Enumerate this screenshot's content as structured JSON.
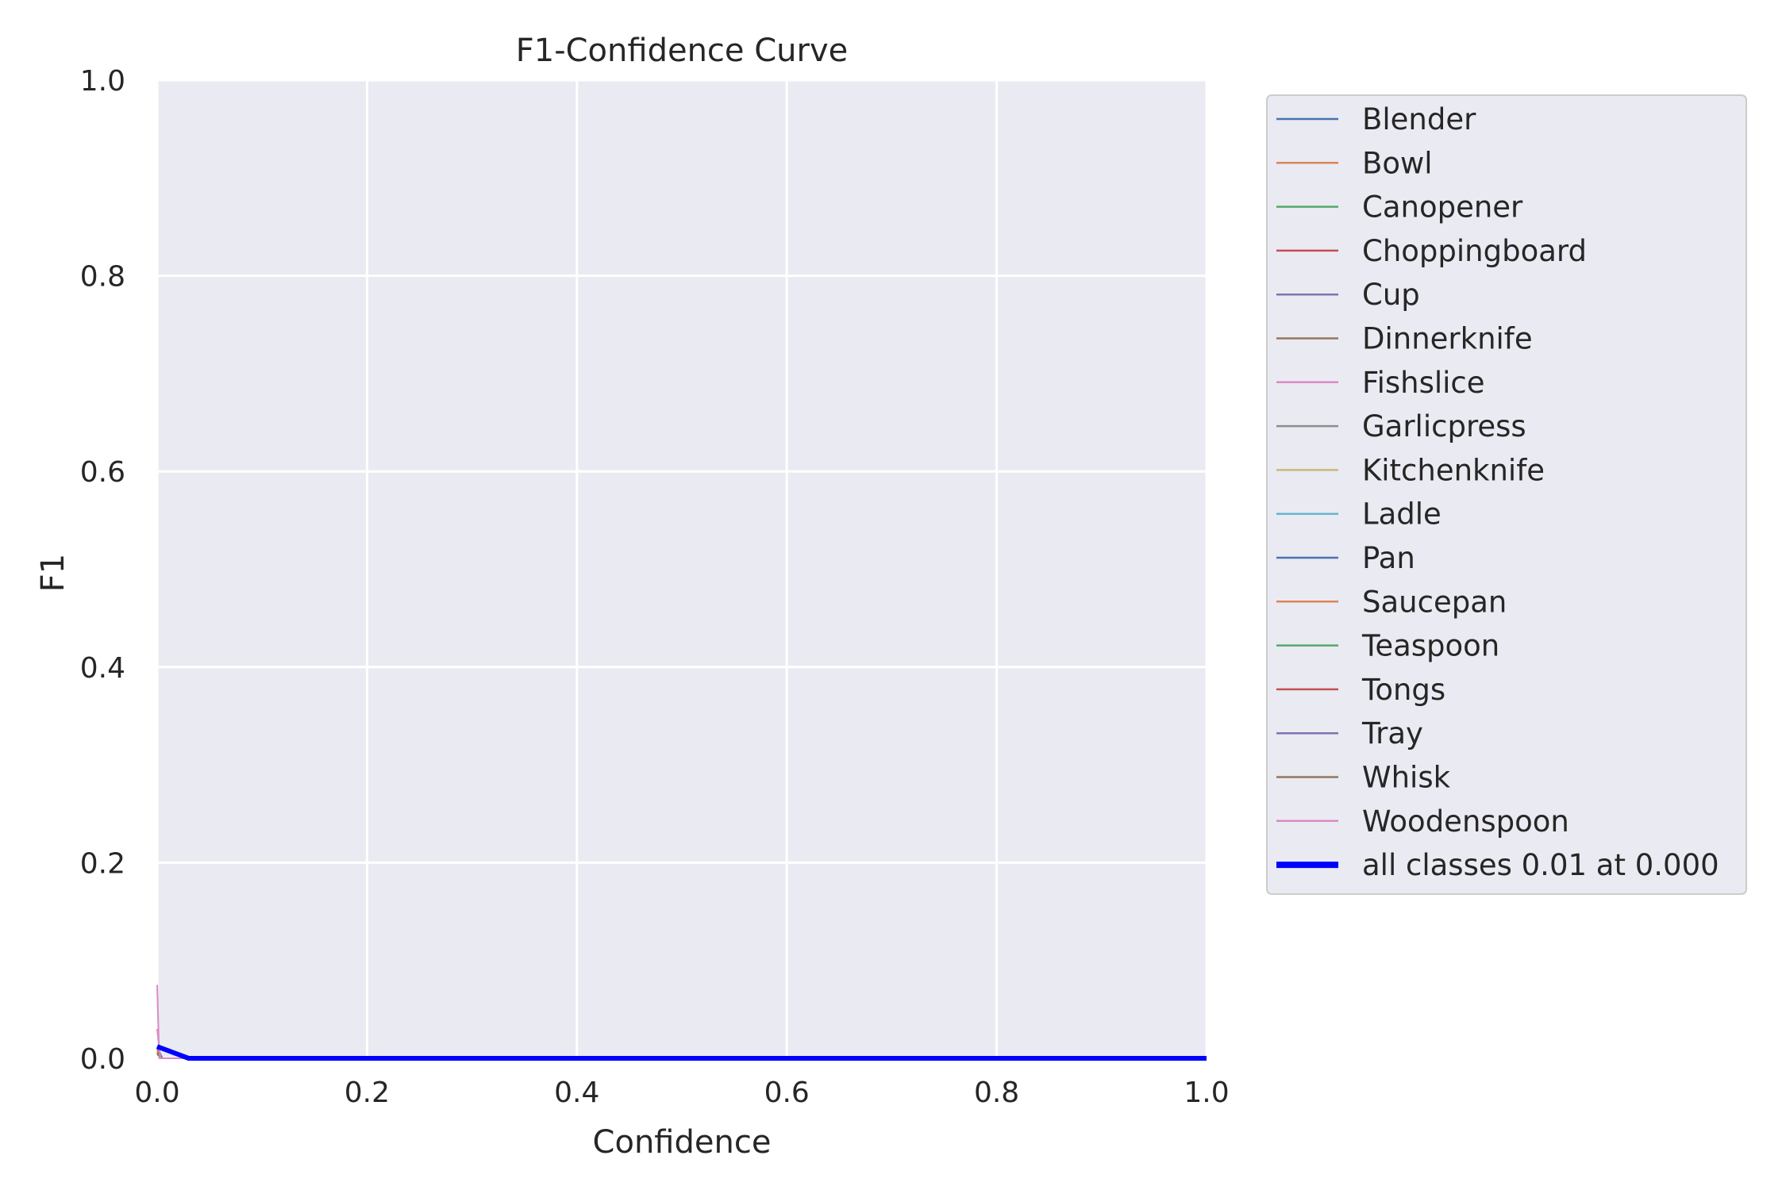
{
  "chart_data": {
    "type": "line",
    "title": "F1-Confidence Curve",
    "xlabel": "Confidence",
    "ylabel": "F1",
    "xlim": [
      0,
      1
    ],
    "ylim": [
      0,
      1
    ],
    "xticks": [
      "0.0",
      "0.2",
      "0.4",
      "0.6",
      "0.8",
      "1.0"
    ],
    "yticks": [
      "0.0",
      "0.2",
      "0.4",
      "0.6",
      "0.8",
      "1.0"
    ],
    "grid": true,
    "background": "#eaeaf2",
    "legend_position": "outside right, top",
    "series": [
      {
        "name": "Blender",
        "color": "#4c72b0",
        "x": [
          0,
          0.005,
          1
        ],
        "y": [
          0.006,
          0.0,
          0.0
        ]
      },
      {
        "name": "Bowl",
        "color": "#dd8452",
        "x": [
          0,
          0.005,
          1
        ],
        "y": [
          0.008,
          0.0,
          0.0
        ]
      },
      {
        "name": "Canopener",
        "color": "#55a868",
        "x": [
          0,
          0.005,
          1
        ],
        "y": [
          0.005,
          0.0,
          0.0
        ]
      },
      {
        "name": "Choppingboard",
        "color": "#c44e52",
        "x": [
          0,
          0.005,
          1
        ],
        "y": [
          0.01,
          0.0,
          0.0
        ]
      },
      {
        "name": "Cup",
        "color": "#8172b3",
        "x": [
          0,
          0.005,
          1
        ],
        "y": [
          0.006,
          0.0,
          0.0
        ]
      },
      {
        "name": "Dinnerknife",
        "color": "#937860",
        "x": [
          0,
          0.005,
          1
        ],
        "y": [
          0.004,
          0.0,
          0.0
        ]
      },
      {
        "name": "Fishslice",
        "color": "#da8bc3",
        "x": [
          0,
          0.002,
          1
        ],
        "y": [
          0.075,
          0.0,
          0.0
        ]
      },
      {
        "name": "Garlicpress",
        "color": "#8c8c8c",
        "x": [
          0,
          0.005,
          1
        ],
        "y": [
          0.005,
          0.0,
          0.0
        ]
      },
      {
        "name": "Kitchenknife",
        "color": "#ccb974",
        "x": [
          0,
          0.005,
          1
        ],
        "y": [
          0.006,
          0.0,
          0.0
        ]
      },
      {
        "name": "Ladle",
        "color": "#64b5cd",
        "x": [
          0,
          0.005,
          1
        ],
        "y": [
          0.005,
          0.0,
          0.0
        ]
      },
      {
        "name": "Pan",
        "color": "#4c72b0",
        "x": [
          0,
          0.005,
          1
        ],
        "y": [
          0.01,
          0.0,
          0.0
        ]
      },
      {
        "name": "Saucepan",
        "color": "#dd8452",
        "x": [
          0,
          0.005,
          1
        ],
        "y": [
          0.008,
          0.0,
          0.0
        ]
      },
      {
        "name": "Teaspoon",
        "color": "#55a868",
        "x": [
          0,
          0.005,
          1
        ],
        "y": [
          0.004,
          0.0,
          0.0
        ]
      },
      {
        "name": "Tongs",
        "color": "#c44e52",
        "x": [
          0,
          0.005,
          1
        ],
        "y": [
          0.006,
          0.0,
          0.0
        ]
      },
      {
        "name": "Tray",
        "color": "#8172b3",
        "x": [
          0,
          0.005,
          1
        ],
        "y": [
          0.012,
          0.0,
          0.0
        ]
      },
      {
        "name": "Whisk",
        "color": "#937860",
        "x": [
          0,
          0.005,
          1
        ],
        "y": [
          0.005,
          0.0,
          0.0
        ]
      },
      {
        "name": "Woodenspoon",
        "color": "#da8bc3",
        "x": [
          0,
          0.003,
          1
        ],
        "y": [
          0.03,
          0.0,
          0.0
        ]
      },
      {
        "name": "all classes 0.01 at 0.000",
        "color": "#0000ff",
        "thick": true,
        "x": [
          0,
          0.01,
          0.02,
          0.03,
          1
        ],
        "y": [
          0.012,
          0.008,
          0.004,
          0.0,
          0.0
        ]
      }
    ]
  }
}
